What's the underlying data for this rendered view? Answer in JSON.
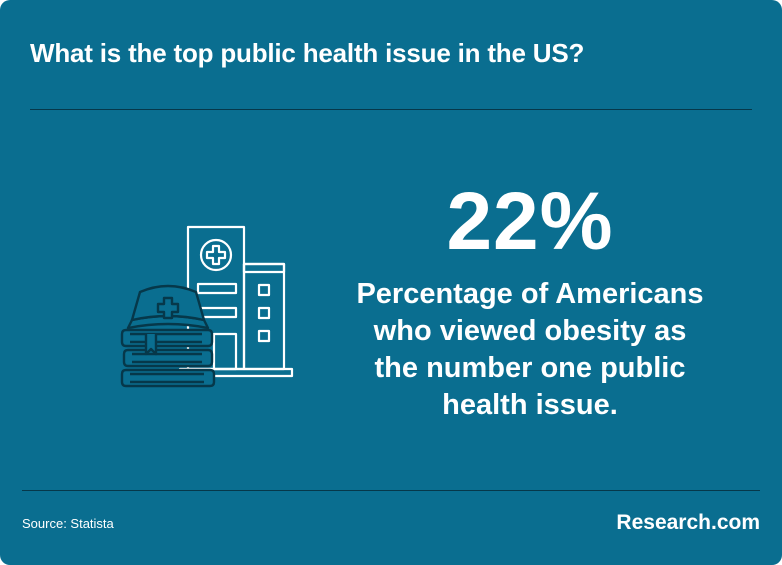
{
  "header": {
    "title": "What is the top public health issue in the US?"
  },
  "stat": {
    "value": "22%",
    "description": "Percentage of Americans who viewed obesity as the number one public health issue."
  },
  "footer": {
    "source": "Source: Statista",
    "brand": "Research.com"
  },
  "illustration": {
    "icon": "hospital-nurse-cap-books-icon"
  },
  "colors": {
    "background": "#0a6e90",
    "text": "#ffffff",
    "icon_stroke": "#ffffff",
    "icon_dark": "#06384a",
    "divider": "#06384a"
  }
}
